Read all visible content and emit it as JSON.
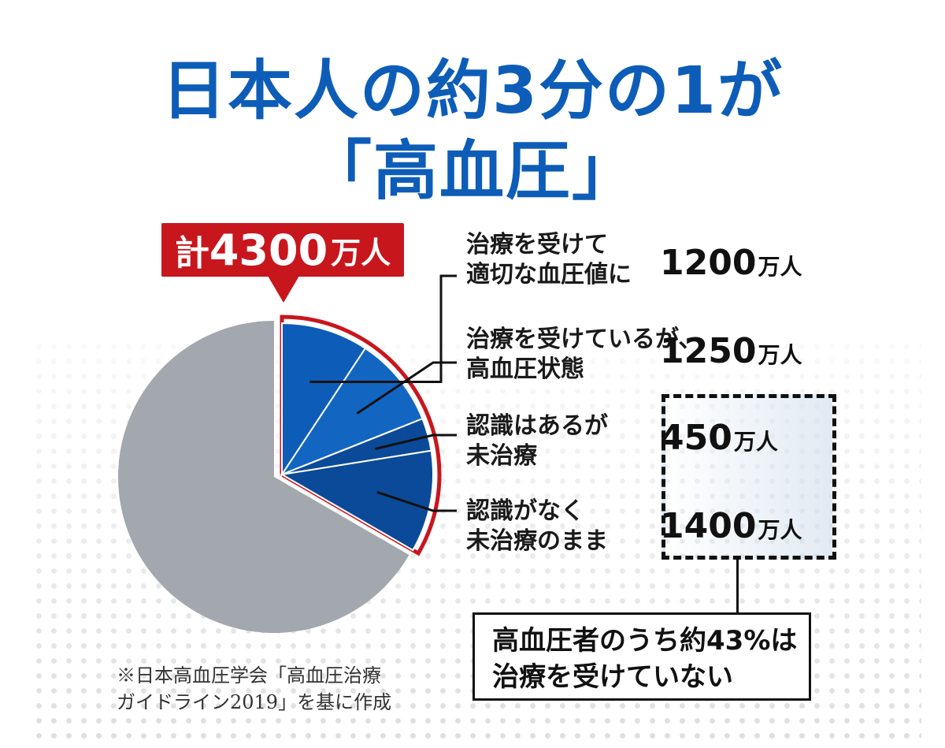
{
  "header": {
    "title_line1": "日本人の約3分の1が",
    "title_line2": "「高血圧」"
  },
  "total": {
    "prefix": "計",
    "number": "4300",
    "unit": "万人"
  },
  "chart_data": {
    "type": "pie",
    "unit": "万人",
    "total": 4300,
    "segments": [
      {
        "label_line1": "治療を受けて",
        "label_line2": "適切な血圧値に",
        "value": 1200,
        "value_text": "1200",
        "color": "#0d5db8"
      },
      {
        "label_line1": "治療を受けているが、",
        "label_line2": "高血圧状態",
        "value": 1250,
        "value_text": "1250",
        "color": "#1266c2"
      },
      {
        "label_line1": "認識はあるが",
        "label_line2": "未治療",
        "value": 450,
        "value_text": "450",
        "color": "#0b4a98"
      },
      {
        "label_line1": "認識がなく",
        "label_line2": "未治療のまま",
        "value": 1400,
        "value_text": "1400",
        "color": "#0b4a98"
      }
    ],
    "colors": {
      "remainder": "#a3a8ae",
      "highlight_border": "#c8161d",
      "divider": "#ffffff"
    }
  },
  "callout": {
    "line1": "高血圧者のうち約43%は",
    "line2": "治療を受けていない"
  },
  "note": {
    "line1": "※日本高血圧学会「高血圧治療",
    "line2": "ガイドライン2019」を基に作成"
  }
}
